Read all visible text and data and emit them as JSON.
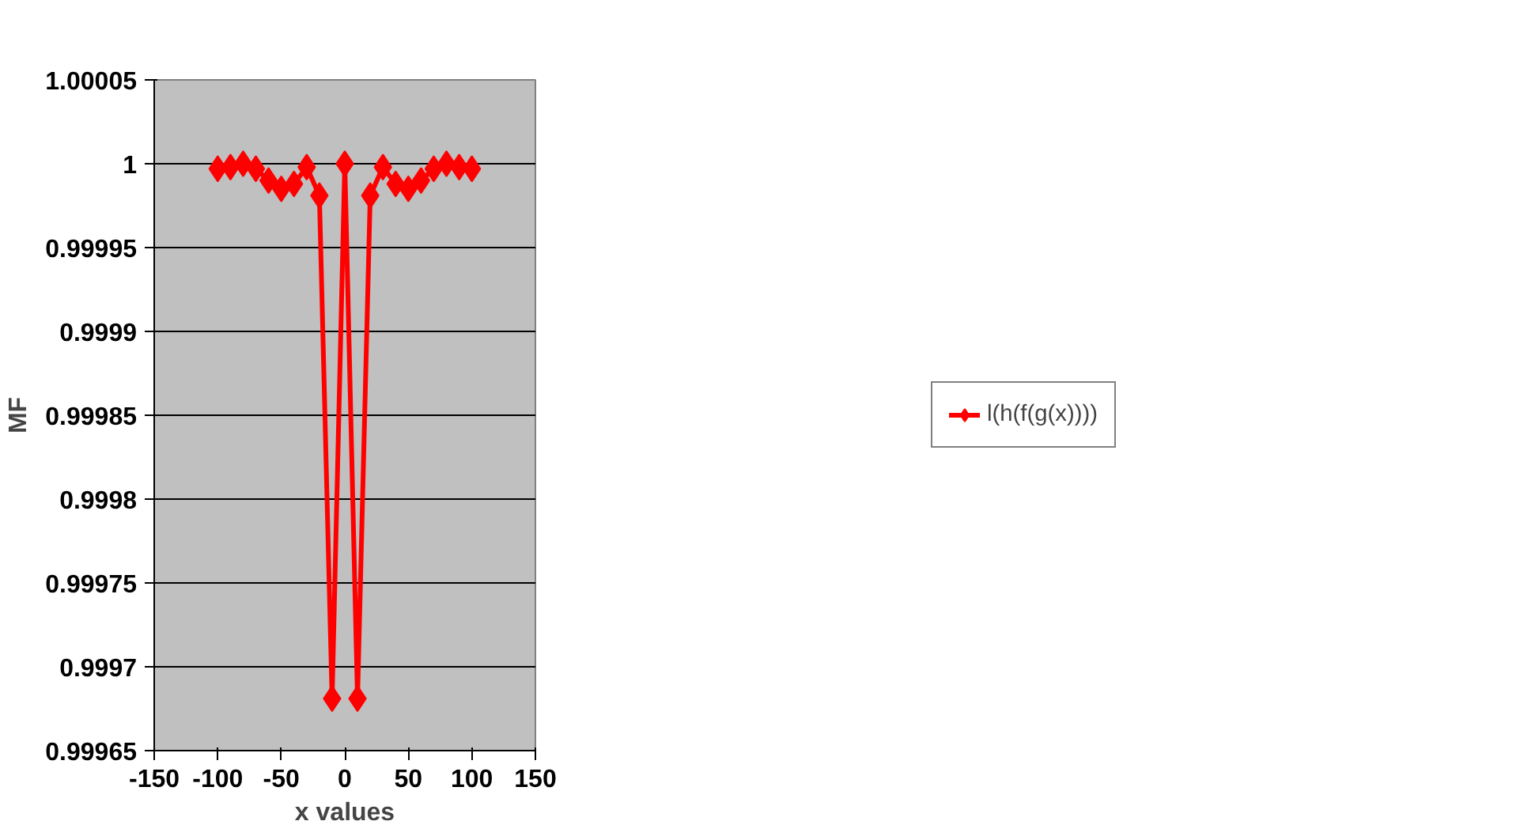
{
  "chart_data": {
    "type": "line",
    "xlabel": "x values",
    "ylabel": "MF",
    "x": [
      -100,
      -90,
      -80,
      -70,
      -60,
      -50,
      -40,
      -30,
      -20,
      -10,
      0,
      10,
      20,
      30,
      40,
      50,
      60,
      70,
      80,
      90,
      100
    ],
    "series": [
      {
        "name": "l(h(f(g(x))))",
        "color": "#ff0000",
        "values": [
          0.999997,
          0.999998,
          1.0,
          0.999997,
          0.99999,
          0.999985,
          0.999988,
          0.999998,
          0.999981,
          0.999681,
          1.0,
          0.999681,
          0.999981,
          0.999998,
          0.999988,
          0.999985,
          0.99999,
          0.999997,
          1.0,
          0.999998,
          0.999997
        ]
      }
    ],
    "xlim": [
      -150,
      150
    ],
    "xticks": [
      -150,
      -100,
      -50,
      0,
      50,
      100,
      150
    ],
    "ylim": [
      0.99965,
      1.00005
    ],
    "yticks": [
      0.99965,
      0.9997,
      0.99975,
      0.9998,
      0.99985,
      0.9999,
      0.99995,
      1,
      1.00005
    ],
    "grid": "y",
    "legend": "right",
    "marker": "diamond",
    "line_style": "solid"
  }
}
